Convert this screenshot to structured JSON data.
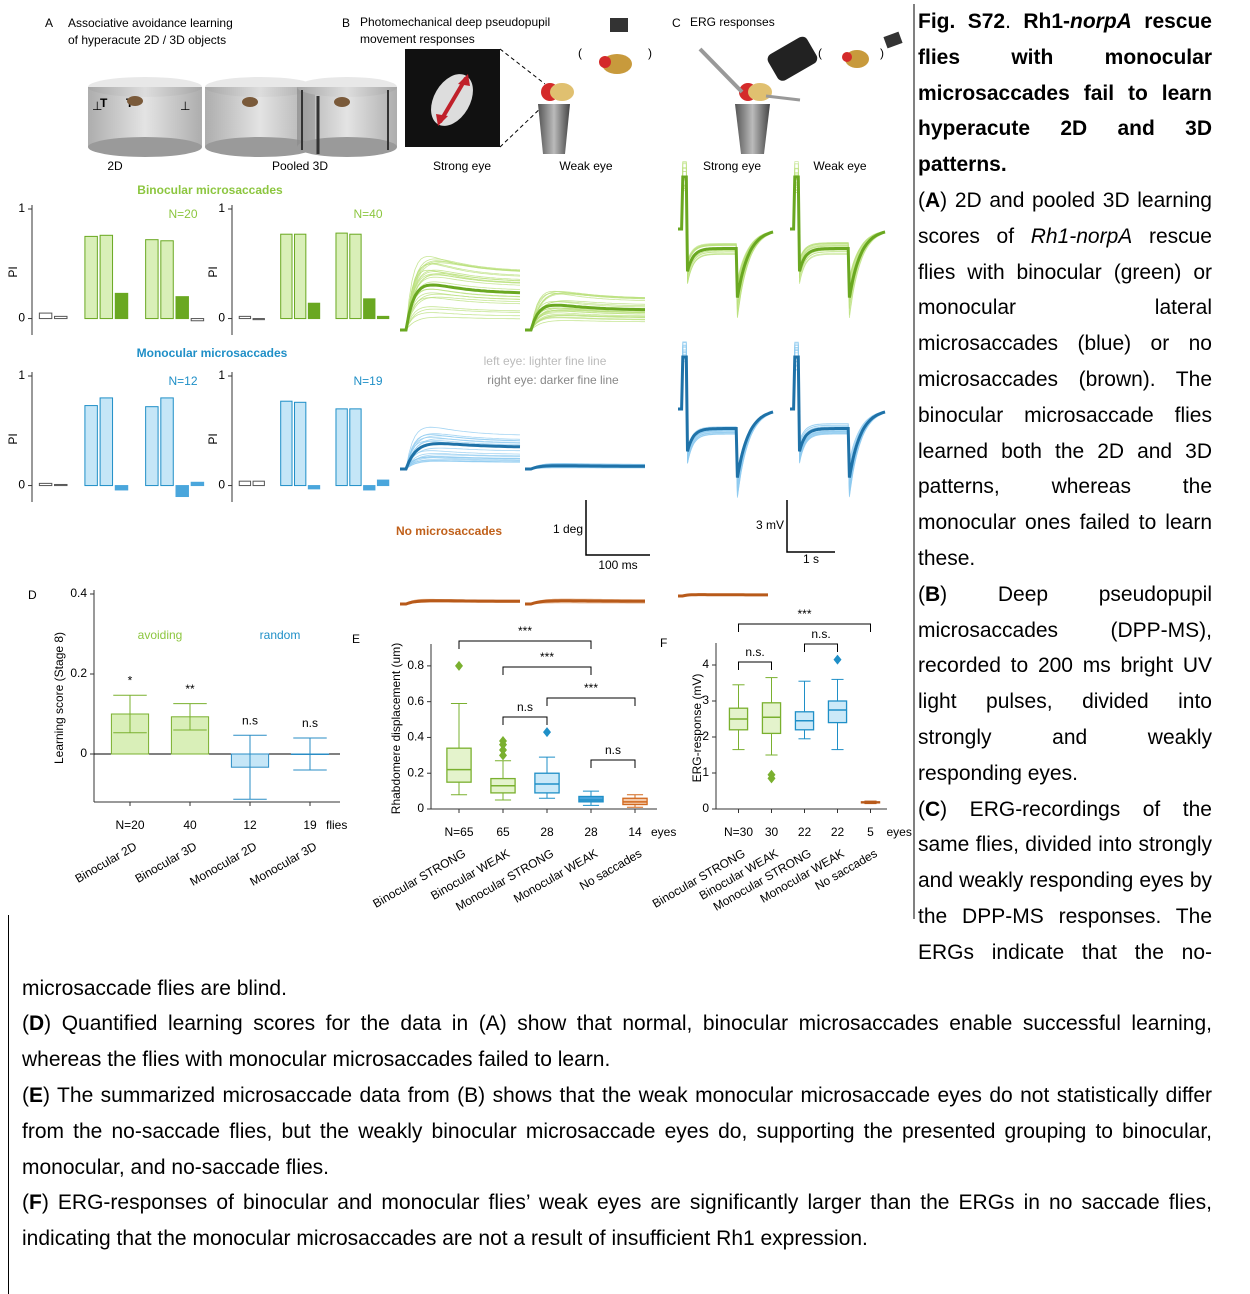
{
  "figure": {
    "panel_A": {
      "letter": "A",
      "title_lines": [
        "Associative avoidance learning",
        "of hyperacute 2D / 3D objects"
      ],
      "labels": [
        "2D",
        "Pooled 3D"
      ]
    },
    "panel_B": {
      "letter": "B",
      "title_lines": [
        "Photomechanical deep pseudopupil",
        "movement responses"
      ],
      "labels": [
        "Strong eye",
        "Weak eye"
      ]
    },
    "panel_C": {
      "letter": "C",
      "title_lines": [
        "ERG responses"
      ],
      "labels": [
        "Strong eye",
        "Weak eye"
      ]
    },
    "panel_D": {
      "letter": "D"
    },
    "panel_E": {
      "letter": "E"
    },
    "panel_F": {
      "letter": "F"
    },
    "groups": [
      "Binocular  microsaccades",
      "Monocular  microsaccades",
      "No  microsaccades"
    ],
    "legend_lines": [
      "left eye: lighter fine line",
      "right eye: darker fine line"
    ],
    "scalebar_B": [
      "1 deg",
      "100 ms"
    ],
    "scalebar_C": [
      "3 mV",
      "1 s"
    ]
  },
  "chart_data": [
    {
      "type": "bar",
      "ylabel": "PI",
      "ylim": [
        -0.15,
        1
      ],
      "yticks": [
        0,
        1
      ],
      "annotation": "N=20",
      "annotation_color": "#8cc63f",
      "values": [
        0.05,
        0.02,
        null,
        0.75,
        0.76,
        0.23,
        null,
        0.72,
        0.71,
        0.2,
        -0.02
      ],
      "colors": [
        "#ffffff",
        "#ffffff",
        null,
        "#d9efb8",
        "#d9efb8",
        "#6aa821",
        null,
        "#d9efb8",
        "#d9efb8",
        "#6aa821",
        "#ffffff"
      ]
    },
    {
      "type": "bar",
      "ylabel": "PI",
      "ylim": [
        -0.15,
        1
      ],
      "yticks": [
        0,
        1
      ],
      "annotation": "N=40",
      "annotation_color": "#8cc63f",
      "values": [
        0.02,
        -0.01,
        null,
        0.77,
        0.77,
        0.14,
        null,
        0.78,
        0.77,
        0.18,
        0.02
      ],
      "colors": [
        "#ffffff",
        "#ffffff",
        null,
        "#d9efb8",
        "#d9efb8",
        "#6aa821",
        null,
        "#d9efb8",
        "#d9efb8",
        "#6aa821",
        "#6aa821"
      ]
    },
    {
      "type": "bar",
      "ylabel": "PI",
      "ylim": [
        -0.15,
        1
      ],
      "yticks": [
        0,
        1
      ],
      "annotation": "N=12",
      "annotation_color": "#1f8fc7",
      "values": [
        0.02,
        0.01,
        null,
        0.73,
        0.8,
        -0.04,
        null,
        0.72,
        0.8,
        -0.1,
        0.03
      ],
      "colors": [
        "#ffffff",
        "#ffffff",
        null,
        "#c5e6f7",
        "#c5e6f7",
        "#4aa6dc",
        null,
        "#c5e6f7",
        "#c5e6f7",
        "#4aa6dc",
        "#4aa6dc"
      ]
    },
    {
      "type": "bar",
      "ylabel": "PI",
      "ylim": [
        -0.15,
        1
      ],
      "yticks": [
        0,
        1
      ],
      "annotation": "N=19",
      "annotation_color": "#1f8fc7",
      "values": [
        0.04,
        0.04,
        null,
        0.77,
        0.76,
        -0.03,
        null,
        0.7,
        0.7,
        -0.04,
        0.05
      ],
      "colors": [
        "#ffffff",
        "#ffffff",
        null,
        "#c5e6f7",
        "#c5e6f7",
        "#4aa6dc",
        null,
        "#c5e6f7",
        "#c5e6f7",
        "#4aa6dc",
        "#4aa6dc"
      ]
    },
    {
      "type": "bar",
      "ylabel": "Learning score (Stage 8)",
      "ylim": [
        -0.12,
        0.4
      ],
      "yticks": [
        0,
        0.2,
        0.4
      ],
      "zero_line": true,
      "categories": [
        "Binocular 2D",
        "Binocular 3D",
        "Monocular 2D",
        "Monocular 3D"
      ],
      "values": [
        0.1,
        0.093,
        -0.033,
        0
      ],
      "errors": [
        0.047,
        0.033,
        0.08,
        0.04
      ],
      "colors": [
        "#d9efb8",
        "#d9efb8",
        "#c5e6f7",
        "#c5e6f7"
      ],
      "strokes": [
        "#7ab02f",
        "#7ab02f",
        "#2a8dc5",
        "#2a8dc5"
      ],
      "sig_labels": [
        "*",
        "**",
        "n.s",
        "n.s"
      ],
      "n_labels": [
        "N=20",
        "40",
        "12",
        "19"
      ],
      "n_unit": "flies",
      "notes": [
        {
          "text": "avoiding",
          "color": "#8cc63f"
        },
        {
          "text": "random",
          "color": "#1f8fc7"
        }
      ]
    },
    {
      "type": "box",
      "ylabel": "Rhabdomere displacement (um)",
      "ylim": [
        0,
        0.9
      ],
      "yticks": [
        0,
        0.2,
        0.4,
        0.6,
        0.8
      ],
      "categories": [
        "Binocular STRONG",
        "Binocular WEAK",
        "Monocular STRONG",
        "Monocular WEAK",
        "No saccades"
      ],
      "colors": [
        "#7ab02f",
        "#7ab02f",
        "#1f8fc7",
        "#1f8fc7",
        "#d2691e"
      ],
      "fills": [
        "#e4f3cc",
        "#e4f3cc",
        "#cbe9f8",
        "#4aa6dc",
        "#f3c9a8"
      ],
      "boxes": [
        {
          "min": 0.08,
          "q1": 0.15,
          "median": 0.22,
          "q3": 0.34,
          "max": 0.59,
          "outliers": [
            0.8
          ]
        },
        {
          "min": 0.05,
          "q1": 0.09,
          "median": 0.13,
          "q3": 0.17,
          "max": 0.27,
          "outliers": [
            0.3,
            0.33,
            0.36,
            0.38
          ]
        },
        {
          "min": 0.06,
          "q1": 0.09,
          "median": 0.14,
          "q3": 0.2,
          "max": 0.29,
          "outliers": [
            0.43
          ]
        },
        {
          "min": 0.02,
          "q1": 0.04,
          "median": 0.05,
          "q3": 0.07,
          "max": 0.1,
          "outliers": []
        },
        {
          "min": 0.01,
          "q1": 0.025,
          "median": 0.04,
          "q3": 0.06,
          "max": 0.08,
          "outliers": []
        }
      ],
      "n_labels": [
        "N=65",
        "65",
        "28",
        "28",
        "14"
      ],
      "n_unit": "eyes",
      "comparisons": [
        {
          "label": "***",
          "from": "Binocular STRONG",
          "to": "Monocular WEAK"
        },
        {
          "label": "***",
          "from": "Binocular WEAK",
          "to": "Monocular WEAK"
        },
        {
          "label": "n.s",
          "from": "Binocular WEAK",
          "to": "Monocular STRONG"
        },
        {
          "label": "***",
          "from": "Monocular STRONG",
          "to": "No saccades"
        },
        {
          "label": "n.s",
          "from": "Monocular WEAK",
          "to": "No saccades"
        }
      ]
    },
    {
      "type": "box",
      "ylabel": "ERG-response (mV)",
      "ylim": [
        0,
        4.5
      ],
      "yticks": [
        0,
        1,
        2,
        3,
        4
      ],
      "categories": [
        "Binocular STRONG",
        "Binocular WEAK",
        "Monocular STRONG",
        "Monocular WEAK",
        "No saccades"
      ],
      "colors": [
        "#7ab02f",
        "#7ab02f",
        "#1f8fc7",
        "#1f8fc7",
        "#b85a1a"
      ],
      "fills": [
        "#e4f3cc",
        "#e4f3cc",
        "#cbe9f8",
        "#cbe9f8",
        "#f3c9a8"
      ],
      "boxes": [
        {
          "min": 1.65,
          "q1": 2.2,
          "median": 2.5,
          "q3": 2.8,
          "max": 3.45,
          "outliers": []
        },
        {
          "min": 1.5,
          "q1": 2.1,
          "median": 2.55,
          "q3": 2.95,
          "max": 3.65,
          "outliers": [
            0.85,
            0.95
          ]
        },
        {
          "min": 1.95,
          "q1": 2.2,
          "median": 2.45,
          "q3": 2.7,
          "max": 3.55,
          "outliers": []
        },
        {
          "min": 1.65,
          "q1": 2.4,
          "median": 2.75,
          "q3": 3.0,
          "max": 3.6,
          "outliers": [
            4.15
          ]
        },
        {
          "min": 0.15,
          "q1": 0.17,
          "median": 0.18,
          "q3": 0.2,
          "max": 0.22,
          "outliers": []
        }
      ],
      "n_labels": [
        "N=30",
        "30",
        "22",
        "22",
        "5"
      ],
      "n_unit": "eyes",
      "comparisons": [
        {
          "label": "n.s.",
          "from": "Binocular STRONG",
          "to": "Binocular WEAK"
        },
        {
          "label": "n.s.",
          "from": "Monocular STRONG",
          "to": "Monocular WEAK"
        },
        {
          "label": "***",
          "from": "Binocular STRONG",
          "to": "No saccades"
        }
      ]
    }
  ],
  "caption": {
    "paragraphs": [
      [
        {
          "t": "Fig. S72",
          "b": true
        },
        {
          "t": ". "
        },
        {
          "t": "Rh1-",
          "b": true
        },
        {
          "t": "norpA",
          "b": true,
          "i": true
        },
        {
          "t": " rescue flies with monocular microsaccades fail to learn hyperacute 2D and 3D patterns.",
          "b": true
        }
      ],
      [
        {
          "t": "("
        },
        {
          "t": "A",
          "b": true
        },
        {
          "t": ") 2D and pooled 3D learning scores of "
        },
        {
          "t": "Rh1-norpA",
          "i": true
        },
        {
          "t": " rescue flies with binocular (green) or monocular lateral microsaccades (blue) or no microsaccades (brown). The binocular microsaccade flies learned both the 2D and 3D patterns, whereas the monocular ones failed to learn these."
        }
      ],
      [
        {
          "t": "("
        },
        {
          "t": "B",
          "b": true
        },
        {
          "t": ") Deep pseudopupil microsaccades (DPP-MS), recorded to 200 ms bright UV light pulses, divided into strongly and weakly responding eyes."
        }
      ],
      [
        {
          "t": "("
        },
        {
          "t": "C",
          "b": true
        },
        {
          "t": ") ERG-recordings of the same flies, divided into strongly and weakly responding eyes by the DPP-MS responses. The ERGs indicate that the no-microsaccade flies are blind."
        }
      ],
      [
        {
          "t": "("
        },
        {
          "t": "D",
          "b": true
        },
        {
          "t": ") Quantified learning scores for the data in (A) show that normal, binocular microsaccades enable successful learning, whereas the flies with monocular microsaccades failed to learn."
        }
      ],
      [
        {
          "t": "("
        },
        {
          "t": "E",
          "b": true
        },
        {
          "t": ") The summarized microsaccade data from (B) shows that the weak monocular microsaccade eyes do not statistically differ from the no-saccade flies, but the weakly binocular microsaccade eyes do, supporting the presented grouping to binocular, monocular, and no-saccade flies."
        }
      ],
      [
        {
          "t": "("
        },
        {
          "t": "F",
          "b": true
        },
        {
          "t": ") ERG-responses of binocular and monocular flies’ weak eyes are significantly larger than the ERGs in no saccade flies, indicating that the monocular microsaccades are not a result of insufficient Rh1 expression."
        }
      ]
    ]
  }
}
